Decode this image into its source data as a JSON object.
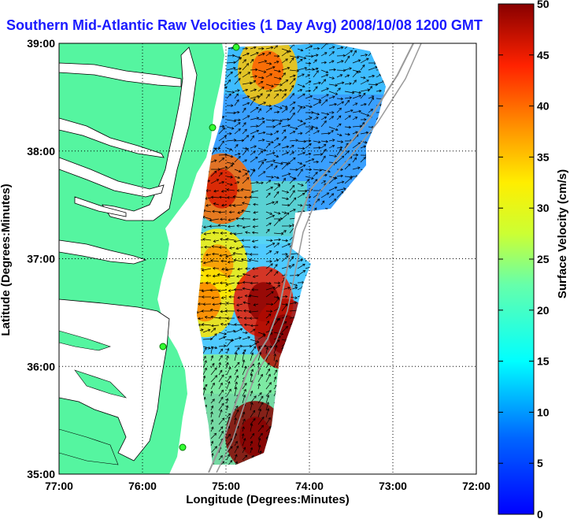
{
  "chart_data": {
    "type": "heatmap",
    "title": "Southern Mid-Atlantic Raw Velocities (1 Day Avg) 2008/10/08 1200 GMT",
    "xlabel": "Longitude (Degrees:Minutes)",
    "ylabel": "Latitude (Degrees:Minutes)",
    "colorbar_label": "Surface Velocity (cm/s)",
    "x_ticks": [
      "77:00",
      "76:00",
      "75:00",
      "74:00",
      "73:00",
      "72:00"
    ],
    "y_ticks": [
      "39:00",
      "38:00",
      "37:00",
      "36:00",
      "35:00"
    ],
    "colorbar_ticks": [
      "0",
      "5",
      "10",
      "15",
      "20",
      "25",
      "30",
      "35",
      "40",
      "45",
      "50"
    ],
    "xlim": [
      -77,
      -72
    ],
    "ylim": [
      35,
      39
    ],
    "clim": [
      0,
      50
    ],
    "grid": true,
    "colormap": "jet",
    "land_color": "#55f5a0",
    "hotspots": [
      {
        "lon": -74.5,
        "lat": 38.75,
        "speed": 35
      },
      {
        "lon": -75.05,
        "lat": 37.65,
        "speed": 40
      },
      {
        "lon": -75.1,
        "lat": 36.95,
        "speed": 32
      },
      {
        "lon": -75.25,
        "lat": 36.6,
        "speed": 33
      },
      {
        "lon": -74.55,
        "lat": 36.6,
        "speed": 45
      },
      {
        "lon": -74.65,
        "lat": 35.35,
        "speed": 50
      },
      {
        "lon": -74.3,
        "lat": 36.3,
        "speed": 48
      }
    ]
  }
}
